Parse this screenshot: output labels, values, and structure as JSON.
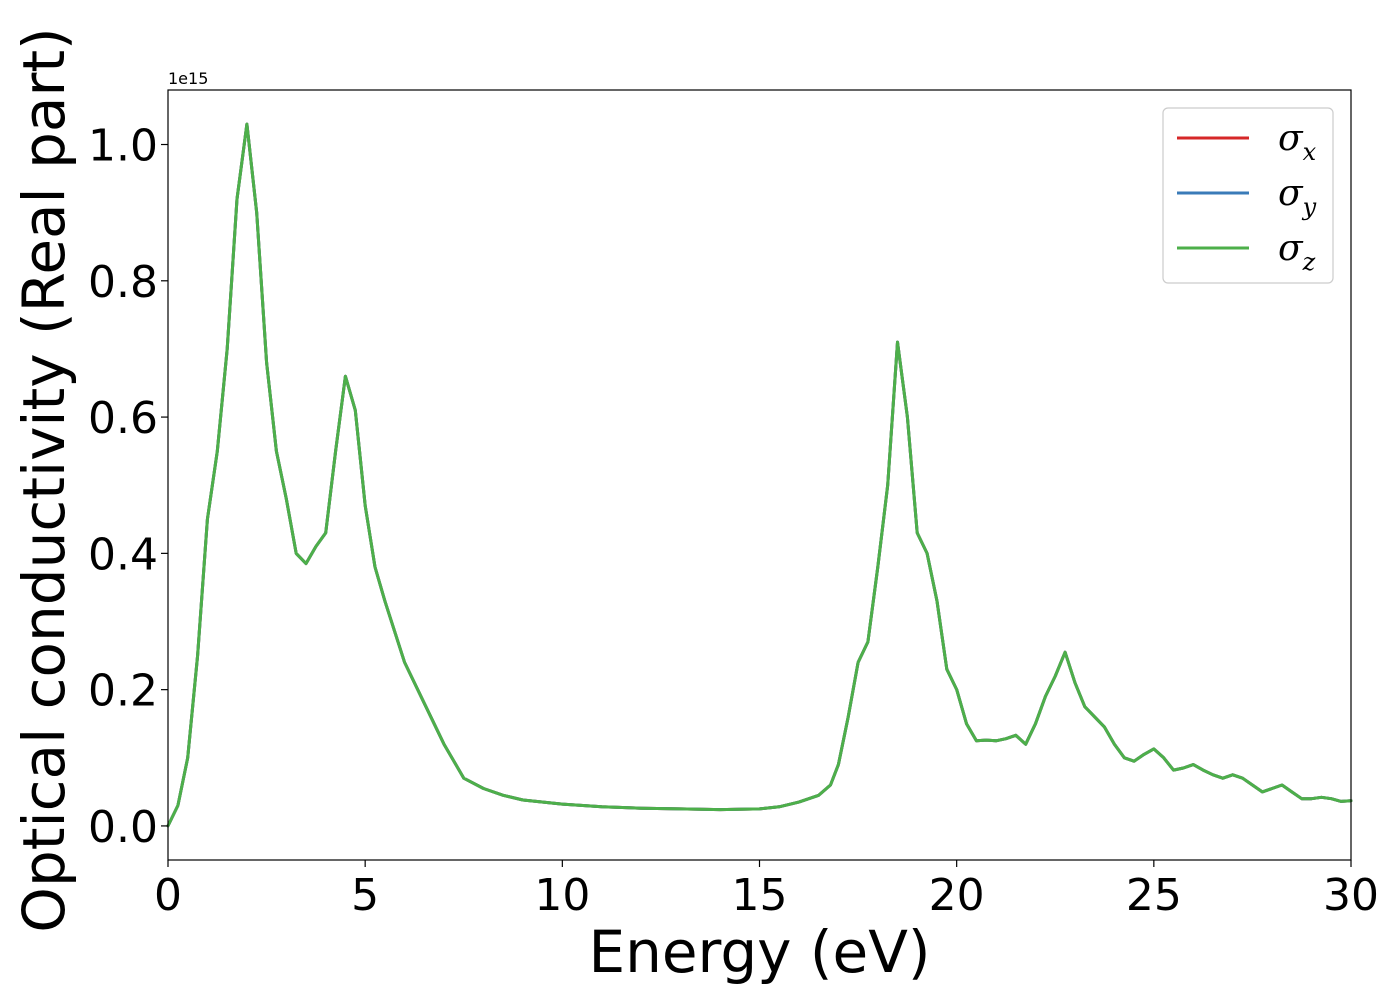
{
  "chart_data": {
    "type": "line",
    "title": "",
    "xlabel": "Energy (eV)",
    "ylabel": "Optical conductivity (Real part)",
    "y_offset_text": "1e15",
    "xlim": [
      0,
      30
    ],
    "ylim": [
      -0.05,
      1.08
    ],
    "y_scale_note": "values in units of 1e15",
    "xticks": [
      0,
      5,
      10,
      15,
      20,
      25,
      30
    ],
    "xtick_labels": [
      "0",
      "5",
      "10",
      "15",
      "20",
      "25",
      "30"
    ],
    "yticks": [
      0.0,
      0.2,
      0.4,
      0.6,
      0.8,
      1.0
    ],
    "ytick_labels": [
      "0.0",
      "0.2",
      "0.4",
      "0.6",
      "0.8",
      "1.0"
    ],
    "grid": false,
    "legend_position": "top-right",
    "legend": [
      {
        "symbol": "σ",
        "subscript": "x",
        "color": "#d62728"
      },
      {
        "symbol": "σ",
        "subscript": "y",
        "color": "#3a7bb8"
      },
      {
        "symbol": "σ",
        "subscript": "z",
        "color": "#4daf4a"
      }
    ],
    "x": [
      0,
      0.25,
      0.5,
      0.75,
      1.0,
      1.25,
      1.5,
      1.75,
      2.0,
      2.25,
      2.5,
      2.75,
      3.0,
      3.25,
      3.5,
      3.75,
      4.0,
      4.25,
      4.5,
      4.75,
      5.0,
      5.25,
      5.5,
      6.0,
      6.5,
      7.0,
      7.5,
      8.0,
      8.5,
      9.0,
      10.0,
      11.0,
      12.0,
      13.0,
      14.0,
      15.0,
      15.5,
      16.0,
      16.5,
      16.8,
      17.0,
      17.25,
      17.5,
      17.75,
      18.0,
      18.25,
      18.5,
      18.75,
      19.0,
      19.25,
      19.5,
      19.75,
      20.0,
      20.25,
      20.5,
      20.75,
      21.0,
      21.25,
      21.5,
      21.75,
      22.0,
      22.25,
      22.5,
      22.75,
      23.0,
      23.25,
      23.5,
      23.75,
      24.0,
      24.25,
      24.5,
      24.75,
      25.0,
      25.25,
      25.5,
      25.75,
      26.0,
      26.25,
      26.5,
      26.75,
      27.0,
      27.25,
      27.5,
      27.75,
      28.0,
      28.25,
      28.5,
      28.75,
      29.0,
      29.25,
      29.5,
      29.75,
      30.0
    ],
    "series": [
      {
        "name": "σx",
        "color": "#d62728",
        "values": [
          0.0,
          0.03,
          0.1,
          0.25,
          0.45,
          0.55,
          0.7,
          0.92,
          1.03,
          0.9,
          0.68,
          0.55,
          0.48,
          0.4,
          0.385,
          0.41,
          0.43,
          0.55,
          0.66,
          0.61,
          0.47,
          0.38,
          0.33,
          0.24,
          0.18,
          0.12,
          0.07,
          0.055,
          0.045,
          0.038,
          0.032,
          0.028,
          0.026,
          0.025,
          0.024,
          0.025,
          0.028,
          0.035,
          0.045,
          0.06,
          0.09,
          0.16,
          0.24,
          0.27,
          0.38,
          0.5,
          0.71,
          0.6,
          0.43,
          0.4,
          0.33,
          0.23,
          0.2,
          0.15,
          0.125,
          0.126,
          0.125,
          0.128,
          0.133,
          0.12,
          0.15,
          0.19,
          0.22,
          0.255,
          0.21,
          0.175,
          0.16,
          0.145,
          0.12,
          0.1,
          0.095,
          0.105,
          0.113,
          0.1,
          0.082,
          0.085,
          0.09,
          0.082,
          0.075,
          0.07,
          0.075,
          0.07,
          0.06,
          0.05,
          0.055,
          0.06,
          0.05,
          0.04,
          0.04,
          0.042,
          0.04,
          0.036,
          0.037
        ]
      },
      {
        "name": "σy",
        "color": "#3a7bb8",
        "values": [
          0.0,
          0.03,
          0.1,
          0.25,
          0.45,
          0.55,
          0.7,
          0.92,
          1.03,
          0.9,
          0.68,
          0.55,
          0.48,
          0.4,
          0.385,
          0.41,
          0.43,
          0.55,
          0.66,
          0.61,
          0.47,
          0.38,
          0.33,
          0.24,
          0.18,
          0.12,
          0.07,
          0.055,
          0.045,
          0.038,
          0.032,
          0.028,
          0.026,
          0.025,
          0.024,
          0.025,
          0.028,
          0.035,
          0.045,
          0.06,
          0.09,
          0.16,
          0.24,
          0.27,
          0.38,
          0.5,
          0.71,
          0.6,
          0.43,
          0.4,
          0.33,
          0.23,
          0.2,
          0.15,
          0.125,
          0.126,
          0.125,
          0.128,
          0.133,
          0.12,
          0.15,
          0.19,
          0.22,
          0.255,
          0.21,
          0.175,
          0.16,
          0.145,
          0.12,
          0.1,
          0.095,
          0.105,
          0.113,
          0.1,
          0.082,
          0.085,
          0.09,
          0.082,
          0.075,
          0.07,
          0.075,
          0.07,
          0.06,
          0.05,
          0.055,
          0.06,
          0.05,
          0.04,
          0.04,
          0.042,
          0.04,
          0.036,
          0.037
        ]
      },
      {
        "name": "σz",
        "color": "#4daf4a",
        "values": [
          0.0,
          0.03,
          0.1,
          0.25,
          0.45,
          0.55,
          0.7,
          0.92,
          1.03,
          0.9,
          0.68,
          0.55,
          0.48,
          0.4,
          0.385,
          0.41,
          0.43,
          0.55,
          0.66,
          0.61,
          0.47,
          0.38,
          0.33,
          0.24,
          0.18,
          0.12,
          0.07,
          0.055,
          0.045,
          0.038,
          0.032,
          0.028,
          0.026,
          0.025,
          0.024,
          0.025,
          0.028,
          0.035,
          0.045,
          0.06,
          0.09,
          0.16,
          0.24,
          0.27,
          0.38,
          0.5,
          0.71,
          0.6,
          0.43,
          0.4,
          0.33,
          0.23,
          0.2,
          0.15,
          0.125,
          0.126,
          0.125,
          0.128,
          0.133,
          0.12,
          0.15,
          0.19,
          0.22,
          0.255,
          0.21,
          0.175,
          0.16,
          0.145,
          0.12,
          0.1,
          0.095,
          0.105,
          0.113,
          0.1,
          0.082,
          0.085,
          0.09,
          0.082,
          0.075,
          0.07,
          0.075,
          0.07,
          0.06,
          0.05,
          0.055,
          0.06,
          0.05,
          0.04,
          0.04,
          0.042,
          0.04,
          0.036,
          0.037
        ]
      }
    ]
  }
}
